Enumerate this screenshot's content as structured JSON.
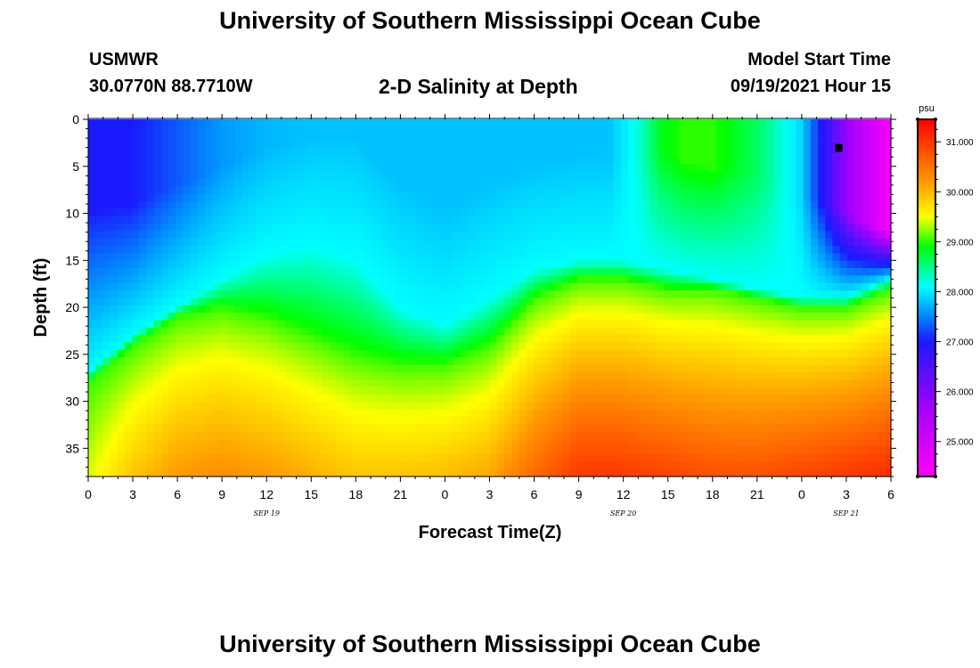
{
  "page": {
    "title": "University of Southern Mississippi Ocean Cube",
    "footer_title": "University of Southern Mississippi Ocean Cube",
    "station": "USMWR",
    "coords": "30.0770N  88.7710W",
    "plot_title": "2-D Salinity at Depth",
    "model_start_label": "Model Start Time",
    "model_start_time": "09/19/2021 Hour 15"
  },
  "chart_data": {
    "type": "heatmap",
    "title": "2-D Salinity at Depth",
    "xlabel": "Forecast Time(Z)",
    "ylabel": "Depth (ft)",
    "x_range_hours": [
      0,
      54
    ],
    "y_range_ft": [
      0,
      38
    ],
    "x_tick_labels": [
      "0",
      "3",
      "6",
      "9",
      "12",
      "15",
      "18",
      "21",
      "0",
      "3",
      "6",
      "9",
      "12",
      "15",
      "18",
      "21",
      "0",
      "3",
      "6"
    ],
    "date_labels": [
      {
        "label": "SEP 19",
        "hour": 12
      },
      {
        "label": "SEP 20",
        "hour": 36
      },
      {
        "label": "SEP 21",
        "hour": 51
      }
    ],
    "y_ticks": [
      0,
      5,
      10,
      15,
      20,
      25,
      30,
      35
    ],
    "colorbar": {
      "units": "psu",
      "min": 24.3,
      "max": 31.45,
      "ticks": [
        31.0,
        30.0,
        29.0,
        28.0,
        27.0,
        26.0,
        25.0
      ],
      "tick_labels": [
        "31.000",
        "30.000",
        "29.000",
        "28.000",
        "27.000",
        "26.000",
        "25.000"
      ],
      "stops": [
        {
          "v": 24.3,
          "color": "#ff00ff"
        },
        {
          "v": 25.6,
          "color": "#aa00ff"
        },
        {
          "v": 27.0,
          "color": "#1a1aff"
        },
        {
          "v": 27.6,
          "color": "#0099ff"
        },
        {
          "v": 28.1,
          "color": "#00ffff"
        },
        {
          "v": 28.9,
          "color": "#00ff00"
        },
        {
          "v": 29.5,
          "color": "#ffff00"
        },
        {
          "v": 30.2,
          "color": "#ff9900"
        },
        {
          "v": 31.45,
          "color": "#ff0000"
        }
      ]
    },
    "station_marker": {
      "hour": 50.5,
      "depth_ft": 3
    },
    "grid_resolution": {
      "nx": 110,
      "ny": 48
    },
    "field_model": {
      "surface_profile": {
        "hours": [
          0,
          3,
          6,
          9,
          12,
          15,
          18,
          21,
          24,
          27,
          30,
          33,
          35,
          37,
          38.5,
          40,
          42,
          45,
          48,
          51,
          54
        ],
        "psu": [
          27.0,
          27.0,
          27.3,
          27.6,
          27.75,
          27.8,
          27.8,
          27.8,
          27.8,
          27.8,
          27.8,
          27.8,
          27.8,
          28.2,
          28.8,
          29.0,
          29.0,
          28.6,
          27.9,
          25.8,
          24.4
        ]
      },
      "gradient_start_depth_ft": {
        "hours": [
          0,
          3,
          6,
          9,
          12,
          15,
          18,
          21,
          24,
          27,
          30,
          33,
          36,
          39,
          42,
          45,
          48,
          51,
          54
        ],
        "ft": [
          10,
          9,
          7,
          5,
          3,
          2,
          2,
          7,
          10,
          7,
          5,
          4,
          4,
          4,
          5,
          6,
          8,
          10,
          12
        ]
      },
      "cyan_depth_ft": {
        "hours": [
          0,
          3,
          6,
          9,
          12,
          15,
          18,
          21,
          24,
          27,
          30,
          33,
          36,
          39,
          42,
          45,
          48,
          51,
          54
        ],
        "ft": [
          27,
          23,
          20,
          17,
          14.5,
          13.5,
          15,
          20,
          22,
          19,
          16,
          15,
          15,
          16,
          17,
          18,
          19,
          19,
          17
        ]
      },
      "bottom_psu": {
        "hours": [
          0,
          3,
          6,
          9,
          12,
          15,
          18,
          21,
          24,
          27,
          30,
          33,
          36,
          39,
          42,
          45,
          48,
          51,
          54
        ],
        "psu": [
          29.4,
          29.9,
          30.2,
          30.3,
          30.2,
          30.05,
          29.9,
          29.9,
          29.95,
          30.1,
          30.6,
          31.0,
          31.0,
          30.9,
          30.8,
          30.8,
          30.9,
          31.0,
          31.1
        ]
      },
      "bottom_start_depth_ft": {
        "hours": [
          0,
          3,
          6,
          9,
          12,
          15,
          18,
          21,
          24,
          27,
          30,
          33,
          36,
          39,
          42,
          45,
          48,
          51,
          54
        ],
        "ft": [
          24,
          22,
          21,
          20,
          21,
          23,
          25,
          26,
          26,
          24,
          19,
          17,
          17,
          18,
          18,
          18,
          17,
          16,
          15
        ]
      }
    }
  }
}
